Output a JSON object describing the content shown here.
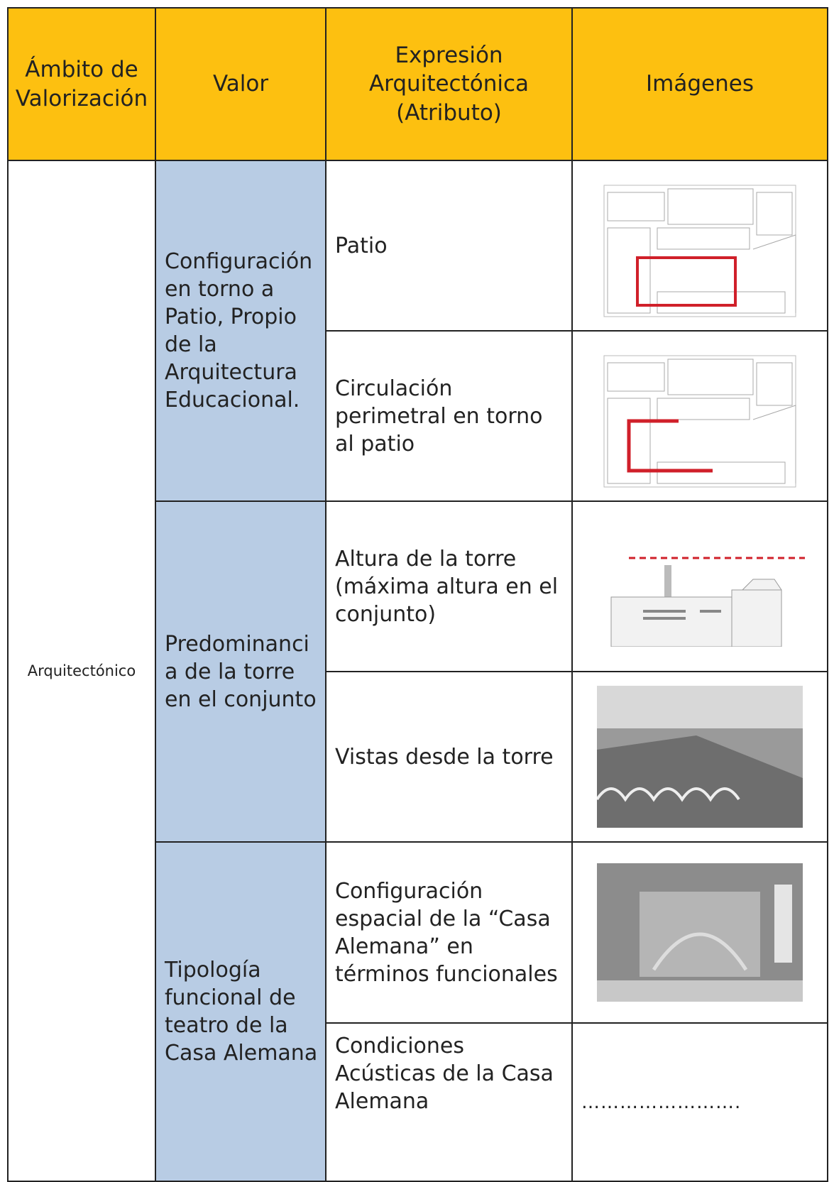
{
  "table": {
    "header": [
      "Ámbito de Valorización",
      "Valor",
      "Expresión Arquitectónica (Atributo)",
      "Imágenes"
    ],
    "ambito": "Arquitectónico",
    "groups": [
      {
        "valor": "Configuración en torno a Patio, Propio de la Arquitectura Educacional.",
        "attributes": [
          "Patio",
          "Circulación perimetral en torno al patio"
        ]
      },
      {
        "valor": "Predominanci a de la torre en el conjunto",
        "attributes": [
          "Altura de la torre (máxima altura en el conjunto)",
          "Vistas desde la torre"
        ]
      },
      {
        "valor": "Tipología funcional de teatro de la Casa Alemana",
        "attributes": [
          "Configuración espacial de la  “Casa Alemana” en términos funcionales",
          "Condiciones Acústicas de la Casa Alemana"
        ]
      }
    ],
    "last_image_text": "……………………."
  }
}
